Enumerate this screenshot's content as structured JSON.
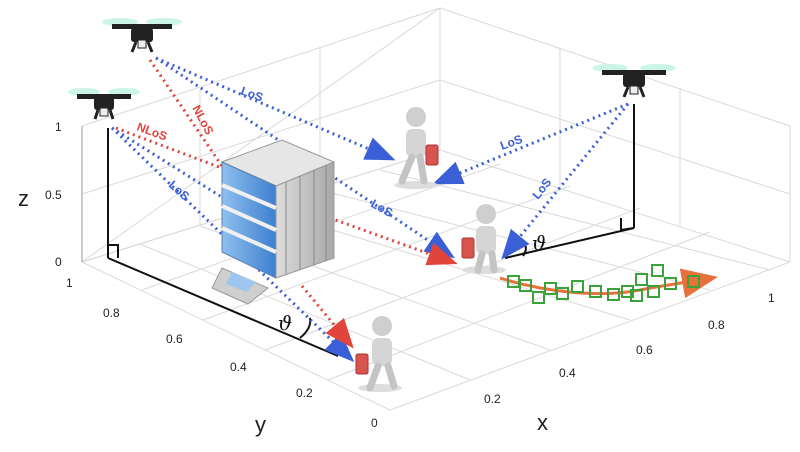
{
  "axes": {
    "x_label": "x",
    "y_label": "y",
    "z_label": "z",
    "x_ticks": [
      "0.2",
      "0.4",
      "0.6",
      "0.8",
      "1"
    ],
    "y_ticks": [
      "0",
      "0.2",
      "0.4",
      "0.6",
      "0.8",
      "1"
    ],
    "z_ticks": [
      "0",
      "0.5",
      "1"
    ]
  },
  "links": {
    "los_label": "LoS",
    "nlos_label": "NLoS"
  },
  "angle_symbol": "ϑ",
  "colors": {
    "los": "#3a5fd6",
    "nlos": "#e0443a",
    "trajectory": "#e8703a",
    "samples": "#3aa33a",
    "grid": "#d9d9d9",
    "building": "#6fa3e0"
  },
  "icons": {
    "drone": "drone-icon",
    "user": "user-with-phone-icon",
    "building": "office-building-icon"
  }
}
